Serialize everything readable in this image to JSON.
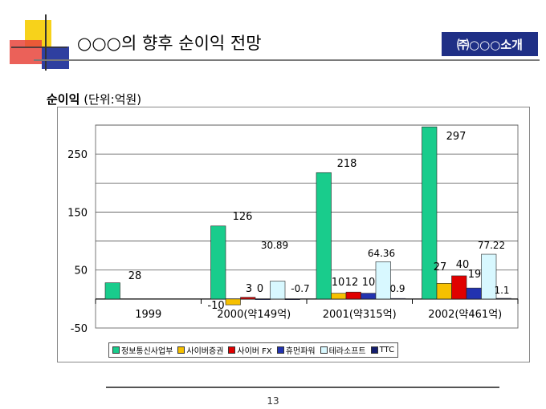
{
  "slide": {
    "title": "○○○의 향후 순이익 전망",
    "company_badge": "㈜○○○소개",
    "unit_caption_main": "순이익",
    "unit_caption_unit": "(단위:억원)",
    "page_number": "13"
  },
  "colors": {
    "deco_yellow": "#f7d21b",
    "deco_red": "#e8453c",
    "deco_blue": "#2f3fa0",
    "badge_bg": "#1f2f86"
  },
  "chart_data": {
    "type": "bar",
    "title": "순이익 (단위:억원)",
    "xlabel": "",
    "ylabel": "",
    "ylim": [
      -50,
      300
    ],
    "yticks": [
      -50,
      50,
      150,
      250
    ],
    "grid": true,
    "legend_position": "bottom",
    "categories": [
      "1999",
      "2000(약149억)",
      "2001(약315억)",
      "2002(약461억)"
    ],
    "series": [
      {
        "name": "정보통신사업부",
        "color": "#19cc8c",
        "values": [
          28,
          126,
          218,
          297
        ],
        "labels": [
          "28",
          "126",
          "218",
          "297"
        ]
      },
      {
        "name": "사이버증권",
        "color": "#f6c000",
        "values": [
          null,
          -10,
          10,
          27
        ],
        "labels": [
          "",
          "-10",
          "10",
          "27"
        ]
      },
      {
        "name": "사이버 FX",
        "color": "#e00000",
        "values": [
          null,
          3,
          12,
          40
        ],
        "labels": [
          "",
          "3",
          "12",
          "40"
        ]
      },
      {
        "name": "휴먼파워",
        "color": "#2233b0",
        "values": [
          null,
          0,
          10,
          19
        ],
        "labels": [
          "",
          "0",
          "10",
          "19"
        ]
      },
      {
        "name": "테라소프트",
        "color": "#d8f8ff",
        "values": [
          null,
          30.89,
          64.36,
          77.22
        ],
        "labels": [
          "",
          "30.89",
          "64.36",
          "77.22"
        ]
      },
      {
        "name": "TTC",
        "color": "#141e6e",
        "values": [
          null,
          -0.7,
          0.9,
          1.1
        ],
        "labels": [
          "",
          "-0.7",
          "0.9",
          "1.1"
        ]
      }
    ]
  }
}
